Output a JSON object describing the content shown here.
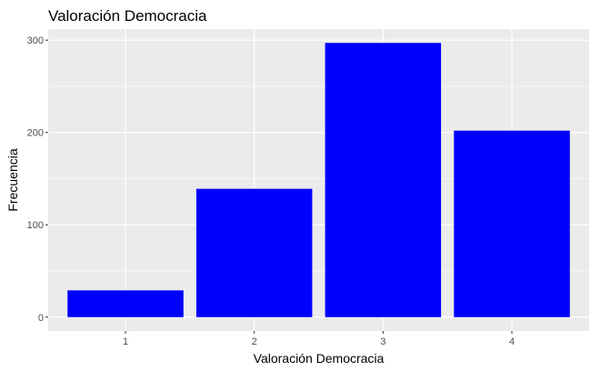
{
  "chart_data": {
    "type": "bar",
    "title": "Valoración Democracia",
    "xlabel": "Valoración Democracia",
    "ylabel": "Frecuencia",
    "categories": [
      "1",
      "2",
      "3",
      "4"
    ],
    "values": [
      29,
      139,
      297,
      202
    ],
    "yticks": [
      "0",
      "100",
      "200",
      "300"
    ],
    "ylim": [
      -15,
      312
    ],
    "grid": true,
    "bar_color": "#0000ff",
    "panel_background": "#ebebeb",
    "grid_color": "#ffffff"
  }
}
